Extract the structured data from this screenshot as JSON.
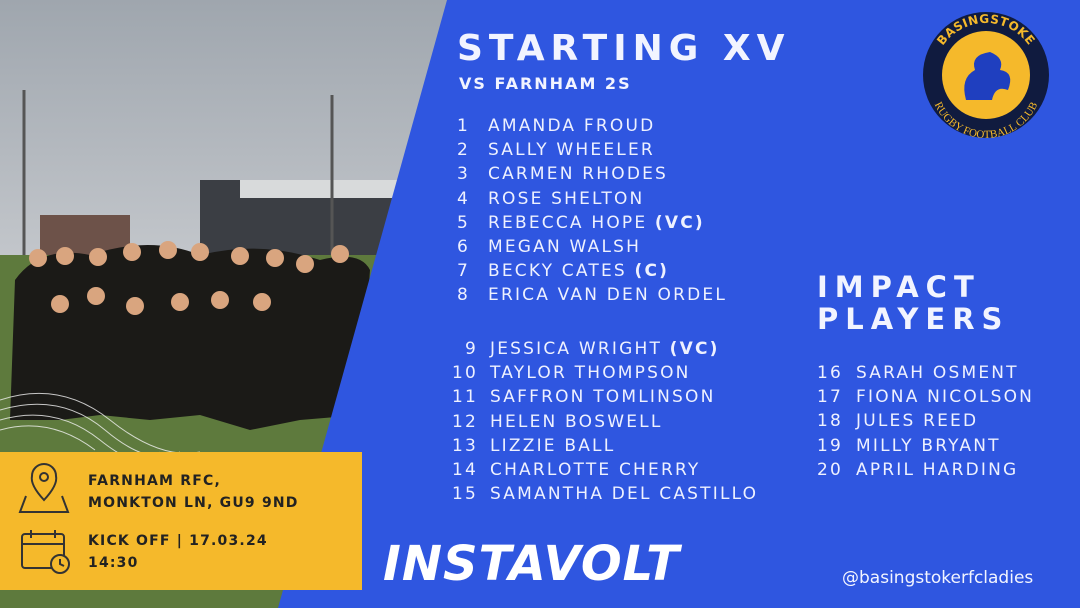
{
  "header": {
    "title": "STARTING XV",
    "subtitle": "VS FARNHAM 2S"
  },
  "starters": [
    {
      "number": 1,
      "name": "AMANDA FROUD"
    },
    {
      "number": 2,
      "name": "SALLY WHEELER"
    },
    {
      "number": 3,
      "name": "CARMEN RHODES"
    },
    {
      "number": 4,
      "name": "ROSE SHELTON"
    },
    {
      "number": 5,
      "name": "REBECCA HOPE",
      "role": "(VC)"
    },
    {
      "number": 6,
      "name": "MEGAN WALSH"
    },
    {
      "number": 7,
      "name": "BECKY CATES",
      "role": "(C)"
    },
    {
      "number": 8,
      "name": "ERICA VAN DEN ORDEL"
    },
    {
      "number": 9,
      "name": "JESSICA WRIGHT",
      "role": "(VC)"
    },
    {
      "number": 10,
      "name": "TAYLOR THOMPSON"
    },
    {
      "number": 11,
      "name": "SAFFRON TOMLINSON"
    },
    {
      "number": 12,
      "name": "HELEN BOSWELL"
    },
    {
      "number": 13,
      "name": "LIZZIE BALL"
    },
    {
      "number": 14,
      "name": "CHARLOTTE CHERRY"
    },
    {
      "number": 15,
      "name": "SAMANTHA DEL CASTILLO"
    }
  ],
  "impact": {
    "title_lines": [
      "IMPACT",
      "PLAYERS"
    ],
    "players": [
      {
        "number": 16,
        "name": "SARAH OSMENT"
      },
      {
        "number": 17,
        "name": "FIONA NICOLSON"
      },
      {
        "number": 18,
        "name": "JULES REED"
      },
      {
        "number": 19,
        "name": "MILLY BRYANT"
      },
      {
        "number": 20,
        "name": "APRIL HARDING"
      }
    ]
  },
  "venue": {
    "lines": [
      "FARNHAM RFC,",
      "MONKTON LN, GU9 9ND"
    ]
  },
  "kickoff": {
    "lines": [
      "KICK OFF | 17.03.24",
      "14:30"
    ]
  },
  "club_logo": {
    "top": "BASINGSTOKE",
    "bottom": "RUGBY FOOTBALL CLUB"
  },
  "sponsor": "INSTAVOLT",
  "handle": "@basingstokerfcladies"
}
